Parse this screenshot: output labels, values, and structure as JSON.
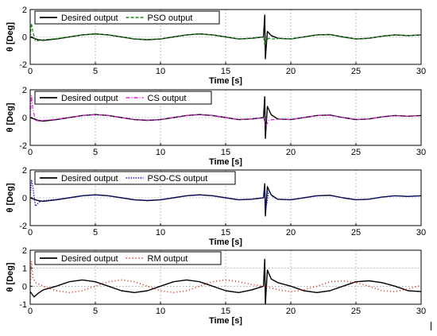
{
  "chart_data": [
    {
      "type": "line",
      "xlabel": "Time [s]",
      "ylabel": "θ [Deg]",
      "xlim": [
        0,
        30
      ],
      "ylim": [
        -2,
        2
      ],
      "xticks": [
        0,
        5,
        10,
        15,
        20,
        25,
        30
      ],
      "yticks": [
        -2,
        0,
        2
      ],
      "grid": true,
      "legend_position": "top-left",
      "series": [
        {
          "name": "Desired output",
          "color": "#000000",
          "dash": "",
          "width": 1.4,
          "x": [
            0,
            0.3,
            0.6,
            1,
            2,
            3,
            4,
            5,
            6,
            7,
            8,
            9,
            10,
            11,
            12,
            13,
            14,
            15,
            16,
            17,
            17.9,
            18.0,
            18.05,
            18.2,
            18.5,
            19,
            20,
            21,
            22,
            23,
            24,
            25,
            26,
            27,
            28,
            29,
            30
          ],
          "y": [
            0.0,
            -0.1,
            -0.2,
            -0.25,
            -0.15,
            0.0,
            0.15,
            0.22,
            0.15,
            0.0,
            -0.15,
            -0.2,
            -0.15,
            0.0,
            0.15,
            0.22,
            0.15,
            0.0,
            -0.15,
            -0.1,
            0.0,
            1.6,
            -1.6,
            0.4,
            0.1,
            -0.1,
            -0.15,
            0.0,
            0.15,
            0.18,
            0.0,
            -0.15,
            -0.1,
            0.05,
            0.15,
            0.1,
            0.15
          ]
        },
        {
          "name": "PSO output",
          "color": "#1a8c1a",
          "dash": "4 2",
          "width": 1.2,
          "x": [
            0,
            0.1,
            0.2,
            0.4,
            0.7,
            1,
            2,
            3,
            4,
            5,
            6,
            7,
            8,
            9,
            10,
            11,
            12,
            13,
            14,
            15,
            16,
            17,
            17.9,
            18.0,
            18.1,
            18.3,
            18.6,
            19,
            20,
            21,
            22,
            23,
            24,
            25,
            26,
            27,
            28,
            29,
            30
          ],
          "y": [
            0.0,
            1.0,
            0.4,
            -0.3,
            -0.25,
            -0.2,
            -0.12,
            0.0,
            0.14,
            0.2,
            0.14,
            0.0,
            -0.14,
            -0.18,
            -0.14,
            0.0,
            0.14,
            0.2,
            0.14,
            0.0,
            -0.14,
            -0.1,
            0.0,
            -0.6,
            -0.3,
            -0.1,
            -0.15,
            -0.12,
            -0.14,
            0.0,
            0.14,
            0.16,
            0.0,
            -0.14,
            -0.1,
            0.05,
            0.14,
            0.1,
            0.14
          ]
        }
      ]
    },
    {
      "type": "line",
      "xlabel": "Time [s]",
      "ylabel": "θ [Deg]",
      "xlim": [
        0,
        30
      ],
      "ylim": [
        -2,
        2
      ],
      "xticks": [
        0,
        5,
        10,
        15,
        20,
        25,
        30
      ],
      "yticks": [
        -2,
        0,
        2
      ],
      "grid": true,
      "legend_position": "top-left",
      "series": [
        {
          "name": "Desired output",
          "color": "#000000",
          "dash": "",
          "width": 1.4,
          "x": [
            0,
            0.3,
            0.6,
            1,
            2,
            3,
            4,
            5,
            6,
            7,
            8,
            9,
            10,
            11,
            12,
            13,
            14,
            15,
            16,
            17,
            17.9,
            18.0,
            18.05,
            18.2,
            18.5,
            19,
            20,
            21,
            22,
            23,
            24,
            25,
            26,
            27,
            28,
            29,
            30
          ],
          "y": [
            0.0,
            -0.1,
            -0.2,
            -0.25,
            -0.15,
            0.0,
            0.15,
            0.22,
            0.15,
            0.0,
            -0.15,
            -0.2,
            -0.15,
            0.0,
            0.15,
            0.22,
            0.15,
            0.0,
            -0.15,
            -0.1,
            0.0,
            1.5,
            -1.5,
            0.8,
            0.2,
            -0.1,
            -0.15,
            0.0,
            0.15,
            0.18,
            0.0,
            -0.15,
            -0.1,
            0.05,
            0.15,
            0.1,
            0.15
          ]
        },
        {
          "name": "CS output",
          "color": "#e020e0",
          "dash": "5 2 1 2",
          "width": 1.2,
          "x": [
            0,
            0.1,
            0.2,
            0.4,
            0.7,
            1,
            2,
            3,
            4,
            5,
            6,
            7,
            8,
            9,
            10,
            11,
            12,
            13,
            14,
            15,
            16,
            17,
            17.9,
            18.0,
            18.1,
            18.3,
            18.6,
            19,
            20,
            21,
            22,
            23,
            24,
            25,
            26,
            27,
            28,
            29,
            30
          ],
          "y": [
            0.0,
            1.6,
            0.6,
            -0.2,
            -0.25,
            -0.2,
            -0.12,
            0.0,
            0.14,
            0.2,
            0.14,
            0.0,
            -0.14,
            -0.18,
            -0.14,
            0.0,
            0.14,
            0.2,
            0.14,
            0.0,
            -0.14,
            -0.1,
            0.0,
            -0.3,
            -0.6,
            -0.2,
            -0.15,
            -0.12,
            -0.14,
            0.0,
            0.14,
            0.16,
            0.0,
            -0.14,
            -0.1,
            0.05,
            0.14,
            0.1,
            0.14
          ]
        }
      ]
    },
    {
      "type": "line",
      "xlabel": "Time [s]",
      "ylabel": "θ [Deg]",
      "xlim": [
        0,
        30
      ],
      "ylim": [
        -2,
        2
      ],
      "xticks": [
        0,
        5,
        10,
        15,
        20,
        25,
        30
      ],
      "yticks": [
        -2,
        0,
        2
      ],
      "grid": true,
      "legend_position": "top-left",
      "series": [
        {
          "name": "Desired output",
          "color": "#000000",
          "dash": "",
          "width": 1.4,
          "x": [
            0,
            0.3,
            0.6,
            1,
            2,
            3,
            4,
            5,
            6,
            7,
            8,
            9,
            10,
            11,
            12,
            13,
            14,
            15,
            16,
            17,
            17.9,
            18.0,
            18.05,
            18.2,
            18.5,
            19,
            20,
            21,
            22,
            23,
            24,
            25,
            26,
            27,
            28,
            29,
            30
          ],
          "y": [
            0.0,
            -0.1,
            -0.2,
            -0.25,
            -0.15,
            0.0,
            0.15,
            0.22,
            0.15,
            0.0,
            -0.15,
            -0.2,
            -0.15,
            0.0,
            0.15,
            0.22,
            0.15,
            0.0,
            -0.15,
            -0.1,
            0.0,
            1.0,
            -1.3,
            0.8,
            0.2,
            -0.1,
            -0.15,
            0.0,
            0.15,
            0.18,
            0.0,
            -0.15,
            -0.1,
            0.05,
            0.15,
            0.1,
            0.15
          ]
        },
        {
          "name": "PSO-CS output",
          "color": "#1a1acc",
          "dash": "1.5 1.5",
          "width": 1.3,
          "x": [
            0,
            0.1,
            0.2,
            0.4,
            0.7,
            1,
            2,
            3,
            4,
            5,
            6,
            7,
            8,
            9,
            10,
            11,
            12,
            13,
            14,
            15,
            16,
            17,
            17.9,
            18.0,
            18.1,
            18.3,
            18.6,
            19,
            20,
            21,
            22,
            23,
            24,
            25,
            26,
            27,
            28,
            29,
            30
          ],
          "y": [
            0.0,
            1.3,
            0.8,
            -0.6,
            -0.3,
            -0.2,
            -0.12,
            0.0,
            0.14,
            0.2,
            0.14,
            0.0,
            -0.14,
            -0.18,
            -0.14,
            0.0,
            0.14,
            0.2,
            0.14,
            0.0,
            -0.14,
            -0.1,
            0.0,
            0.6,
            -0.8,
            0.5,
            0.1,
            -0.12,
            -0.14,
            0.0,
            0.14,
            0.16,
            0.0,
            -0.14,
            -0.1,
            0.05,
            0.14,
            0.1,
            0.14
          ]
        }
      ]
    },
    {
      "type": "line",
      "xlabel": "Time [s]",
      "ylabel": "θ [Deg]",
      "xlim": [
        0,
        30
      ],
      "ylim": [
        -1,
        2
      ],
      "xticks": [
        0,
        5,
        10,
        15,
        20,
        25,
        30
      ],
      "yticks": [
        -1,
        0,
        1,
        2
      ],
      "grid": true,
      "legend_position": "top-left",
      "series": [
        {
          "name": "Desired output",
          "color": "#000000",
          "dash": "",
          "width": 1.4,
          "x": [
            0,
            0.3,
            0.6,
            1,
            2,
            3,
            4,
            5,
            6,
            7,
            8,
            9,
            10,
            11,
            12,
            13,
            14,
            15,
            16,
            17,
            17.9,
            18.0,
            18.05,
            18.2,
            18.5,
            19,
            20,
            21,
            22,
            23,
            24,
            25,
            26,
            27,
            28,
            29,
            30
          ],
          "y": [
            -0.3,
            -0.6,
            -0.4,
            -0.2,
            0.0,
            0.25,
            0.35,
            0.25,
            0.0,
            -0.25,
            -0.35,
            -0.25,
            0.0,
            0.25,
            0.35,
            0.25,
            0.0,
            -0.25,
            -0.35,
            -0.2,
            0.0,
            1.5,
            -1.0,
            0.9,
            0.4,
            0.2,
            0.0,
            -0.25,
            -0.35,
            -0.25,
            0.0,
            0.25,
            0.3,
            0.2,
            0.0,
            -0.25,
            -0.3
          ]
        },
        {
          "name": "RM output",
          "color": "#e82010",
          "dash": "1 3",
          "width": 1.6,
          "x": [
            0,
            0.1,
            0.2,
            0.4,
            0.7,
            1,
            2,
            3,
            4,
            5,
            6,
            7,
            8,
            9,
            10,
            11,
            12,
            13,
            14,
            15,
            16,
            17,
            18,
            19,
            20,
            21,
            22,
            23,
            24,
            25,
            26,
            27,
            28,
            29,
            30
          ],
          "y": [
            0.0,
            1.4,
            0.5,
            0.2,
            0.1,
            0.0,
            -0.25,
            -0.35,
            -0.25,
            0.0,
            0.25,
            0.35,
            0.25,
            0.0,
            -0.25,
            -0.35,
            -0.25,
            0.0,
            0.25,
            0.35,
            0.25,
            0.1,
            0.0,
            -0.2,
            -0.3,
            -0.2,
            0.0,
            0.25,
            0.3,
            0.2,
            0.0,
            -0.25,
            -0.3,
            -0.15,
            0.05
          ]
        }
      ]
    }
  ]
}
